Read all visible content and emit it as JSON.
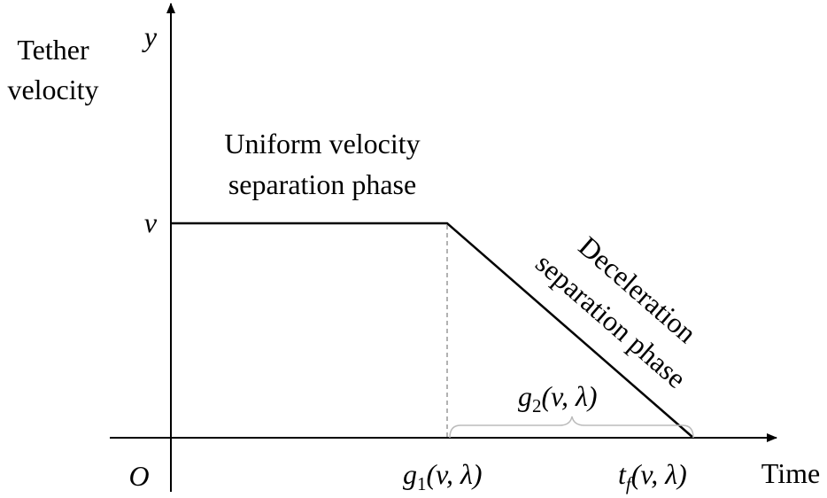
{
  "axes": {
    "y_label": [
      "Tether",
      "velocity"
    ],
    "y_symbol": "y",
    "x_label": "Time",
    "origin": "O",
    "v_level": "v"
  },
  "phases": {
    "uniform": [
      "Uniform velocity",
      "separation phase"
    ],
    "deceleration": [
      "Deceleration",
      "separation phase"
    ]
  },
  "markers": {
    "g1": {
      "base": "g",
      "sub": "1",
      "args": "(v, λ)"
    },
    "g2": {
      "base": "g",
      "sub": "2",
      "args": "(v, λ)"
    },
    "tf": {
      "base": "t",
      "sub": "f",
      "args": "(v, λ)"
    }
  }
}
